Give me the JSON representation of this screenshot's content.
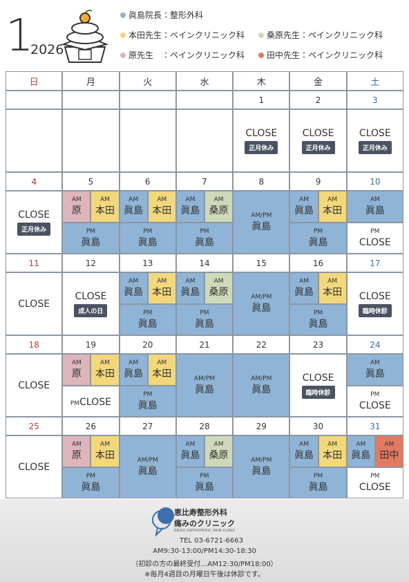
{
  "header": {
    "month": "1",
    "year": "2026",
    "legend": [
      {
        "text": "眞島院長：整形外科",
        "color": "#8fb4d6"
      },
      {
        "text": "本田先生：ペインクリニック科",
        "color": "#f3d77b"
      },
      {
        "text": "桑原先生：ペインクリニック科",
        "color": "#cdd9b8"
      },
      {
        "text": "原先生　：ペインクリニック科",
        "color": "#deb5bc"
      },
      {
        "text": "田中先生：ペインクリニック科",
        "color": "#e27a62"
      }
    ]
  },
  "calendar": {
    "weekdays": [
      {
        "text": "日",
        "color": "#c0392b"
      },
      {
        "text": "月",
        "color": "#333333"
      },
      {
        "text": "火",
        "color": "#333333"
      },
      {
        "text": "水",
        "color": "#333333"
      },
      {
        "text": "木",
        "color": "#333333"
      },
      {
        "text": "金",
        "color": "#333333"
      },
      {
        "text": "土",
        "color": "#3a6ea5"
      }
    ],
    "weeks": [
      {
        "dates": [
          null,
          null,
          null,
          null,
          1,
          2,
          3
        ],
        "cells": [
          null,
          null,
          null,
          null,
          {
            "type": "close",
            "text": "CLOSE",
            "badge": "正月休み"
          },
          {
            "type": "close",
            "text": "CLOSE",
            "badge": "正月休み"
          },
          {
            "type": "close",
            "text": "CLOSE",
            "badge": "正月休み"
          }
        ]
      },
      {
        "dates": [
          4,
          5,
          6,
          7,
          8,
          9,
          10
        ],
        "cells": [
          {
            "type": "close",
            "text": "CLOSE",
            "badge": "正月休み"
          },
          {
            "type": "split",
            "am": [
              {
                "label": "AM",
                "name": "原",
                "color": "#deb5bc"
              },
              {
                "label": "AM",
                "name": "本田",
                "color": "#f3d77b"
              }
            ],
            "pm": {
              "label": "PM",
              "name": "眞島",
              "color": "#8fb4d6"
            }
          },
          {
            "type": "split",
            "am": [
              {
                "label": "AM",
                "name": "眞島",
                "color": "#8fb4d6"
              },
              {
                "label": "AM",
                "name": "本田",
                "color": "#f3d77b"
              }
            ],
            "pm": {
              "label": "PM",
              "name": "眞島",
              "color": "#8fb4d6"
            }
          },
          {
            "type": "split",
            "am": [
              {
                "label": "AM",
                "name": "眞島",
                "color": "#8fb4d6"
              },
              {
                "label": "AM",
                "name": "桑原",
                "color": "#cdd9b8"
              }
            ],
            "pm": {
              "label": "PM",
              "name": "眞島",
              "color": "#8fb4d6"
            }
          },
          {
            "type": "allday",
            "label": "AM/PM",
            "name": "眞島",
            "color": "#8fb4d6"
          },
          {
            "type": "split",
            "am": [
              {
                "label": "AM",
                "name": "眞島",
                "color": "#8fb4d6"
              },
              {
                "label": "AM",
                "name": "本田",
                "color": "#f3d77b"
              }
            ],
            "pm": {
              "label": "PM",
              "name": "眞島",
              "color": "#8fb4d6"
            }
          },
          {
            "type": "split",
            "am": [
              {
                "label": "AM",
                "name": "眞島",
                "color": "#8fb4d6"
              }
            ],
            "pm": {
              "label": "PM",
              "name": "CLOSE",
              "color": "#ffffff"
            }
          }
        ]
      },
      {
        "dates": [
          11,
          12,
          13,
          14,
          15,
          16,
          17
        ],
        "cells": [
          {
            "type": "close",
            "text": "CLOSE"
          },
          {
            "type": "close",
            "text": "CLOSE",
            "badge": "成人の日"
          },
          {
            "type": "split",
            "am": [
              {
                "label": "AM",
                "name": "眞島",
                "color": "#8fb4d6"
              },
              {
                "label": "AM",
                "name": "本田",
                "color": "#f3d77b"
              }
            ],
            "pm": {
              "label": "PM",
              "name": "眞島",
              "color": "#8fb4d6"
            }
          },
          {
            "type": "split",
            "am": [
              {
                "label": "AM",
                "name": "眞島",
                "color": "#8fb4d6"
              },
              {
                "label": "AM",
                "name": "桑原",
                "color": "#cdd9b8"
              }
            ],
            "pm": {
              "label": "PM",
              "name": "眞島",
              "color": "#8fb4d6"
            }
          },
          {
            "type": "allday",
            "label": "AM/PM",
            "name": "眞島",
            "color": "#8fb4d6"
          },
          {
            "type": "split",
            "am": [
              {
                "label": "AM",
                "name": "眞島",
                "color": "#8fb4d6"
              },
              {
                "label": "AM",
                "name": "本田",
                "color": "#f3d77b"
              }
            ],
            "pm": {
              "label": "PM",
              "name": "眞島",
              "color": "#8fb4d6"
            }
          },
          {
            "type": "close",
            "text": "CLOSE",
            "badge": "臨時休診"
          }
        ]
      },
      {
        "dates": [
          18,
          19,
          20,
          21,
          22,
          23,
          24
        ],
        "cells": [
          {
            "type": "close",
            "text": "CLOSE"
          },
          {
            "type": "split",
            "am": [
              {
                "label": "AM",
                "name": "原",
                "color": "#deb5bc"
              },
              {
                "label": "AM",
                "name": "本田",
                "color": "#f3d77b"
              }
            ],
            "pm": {
              "label": "PM",
              "name": "CLOSE",
              "color": "#ffffff",
              "style": "inline"
            }
          },
          {
            "type": "split",
            "am": [
              {
                "label": "AM",
                "name": "眞島",
                "color": "#8fb4d6"
              },
              {
                "label": "AM",
                "name": "本田",
                "color": "#f3d77b"
              }
            ],
            "pm": {
              "label": "PM",
              "name": "眞島",
              "color": "#8fb4d6"
            }
          },
          {
            "type": "allday",
            "label": "AM/PM",
            "name": "眞島",
            "color": "#8fb4d6"
          },
          {
            "type": "allday",
            "label": "AM/PM",
            "name": "眞島",
            "color": "#8fb4d6"
          },
          {
            "type": "close",
            "text": "CLOSE",
            "badge": "臨時休診"
          },
          {
            "type": "split",
            "am": [
              {
                "label": "AM",
                "name": "眞島",
                "color": "#8fb4d6"
              }
            ],
            "pm": {
              "label": "PM",
              "name": "CLOSE",
              "color": "#ffffff"
            }
          }
        ]
      },
      {
        "dates": [
          25,
          26,
          27,
          28,
          29,
          30,
          31
        ],
        "cells": [
          {
            "type": "close",
            "text": "CLOSE"
          },
          {
            "type": "split",
            "am": [
              {
                "label": "AM",
                "name": "原",
                "color": "#deb5bc"
              },
              {
                "label": "AM",
                "name": "本田",
                "color": "#f3d77b"
              }
            ],
            "pm": {
              "label": "PM",
              "name": "眞島",
              "color": "#8fb4d6"
            }
          },
          {
            "type": "allday",
            "label": "AM/PM",
            "name": "眞島",
            "color": "#8fb4d6"
          },
          {
            "type": "split",
            "am": [
              {
                "label": "AM",
                "name": "眞島",
                "color": "#8fb4d6"
              },
              {
                "label": "AM",
                "name": "桑原",
                "color": "#cdd9b8"
              }
            ],
            "pm": {
              "label": "PM",
              "name": "眞島",
              "color": "#8fb4d6"
            }
          },
          {
            "type": "allday",
            "label": "AM/PM",
            "name": "眞島",
            "color": "#8fb4d6"
          },
          {
            "type": "split",
            "am": [
              {
                "label": "AM",
                "name": "眞島",
                "color": "#8fb4d6"
              },
              {
                "label": "AM",
                "name": "本田",
                "color": "#f3d77b"
              }
            ],
            "pm": {
              "label": "PM",
              "name": "眞島",
              "color": "#8fb4d6"
            }
          },
          {
            "type": "split",
            "am": [
              {
                "label": "AM",
                "name": "眞島",
                "color": "#8fb4d6"
              },
              {
                "label": "AM",
                "name": "田中",
                "color": "#e27a62"
              }
            ],
            "pm": {
              "label": "PM",
              "name": "CLOSE",
              "color": "#ffffff"
            }
          }
        ]
      }
    ]
  },
  "footer": {
    "name": "恵比寿整形外科",
    "subname": "痛みのクリニック",
    "name_en": "EBISU ORTHOPEDIC PAIN CLINIC",
    "tel": "TEL 03-6721-6663",
    "hours": "AM9:30-13:00/PM14:30-18:30",
    "note1": "（初診の方の最終受付…AM12:30/PM18:00）",
    "note2": "※毎月4週目の月曜日午後は休診です。"
  }
}
